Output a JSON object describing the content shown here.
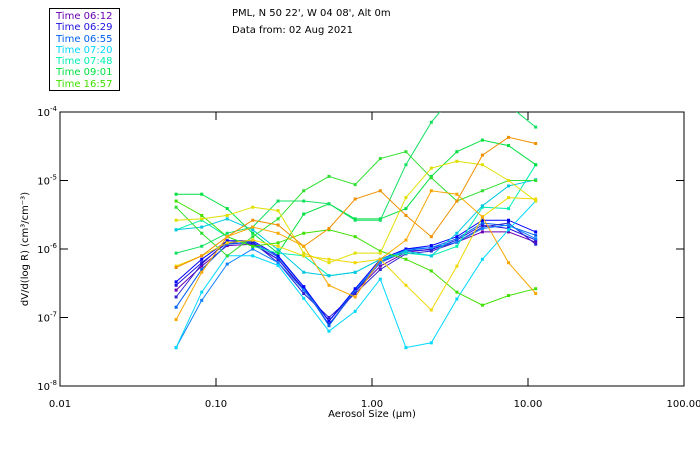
{
  "header": {
    "line1": "PML, N 50 22', W 04 08', Alt 0m",
    "line2": "Data from: 02 Aug 2021"
  },
  "legend": [
    {
      "label": "Time 06:12",
      "color": "#6a00b0"
    },
    {
      "label": "Time 06:29",
      "color": "#2010e0"
    },
    {
      "label": "Time 06:55",
      "color": "#0060f0"
    },
    {
      "label": "Time 07:20",
      "color": "#00d8ff"
    },
    {
      "label": "Time 07:48",
      "color": "#00f0b0"
    },
    {
      "label": "Time 09:01",
      "color": "#00e040"
    },
    {
      "label": "Time 16:57",
      "color": "#40e000"
    }
  ],
  "chart_data": {
    "type": "line",
    "xlabel": "Aerosol Size (µm)",
    "ylabel": "dV/d(log R) (cm³/cm⁻³)",
    "xscale": "log",
    "yscale": "log",
    "xlim": [
      0.01,
      100
    ],
    "ylim": [
      1e-08,
      0.0001
    ],
    "xticks": [
      "0.01",
      "0.10",
      "1.00",
      "10.00",
      "100.00"
    ],
    "yticks": [
      {
        "exp": "-4"
      },
      {
        "exp": "-5"
      },
      {
        "exp": "-6"
      },
      {
        "exp": "-7"
      },
      {
        "exp": "-8"
      }
    ],
    "x": [
      0.0555,
      0.081,
      0.118,
      0.172,
      0.25,
      0.365,
      0.53,
      0.78,
      1.13,
      1.65,
      2.4,
      3.5,
      5.1,
      7.5,
      11.2
    ],
    "series_value_encoding": "log10 of dV/d(log R)",
    "series": [
      {
        "color": "#6a00b0",
        "log10_values": [
          -6.6,
          -6.25,
          -5.95,
          -5.93,
          -6.15,
          -6.6,
          -7.05,
          -6.62,
          -6.25,
          -6.05,
          -6.0,
          -5.9,
          -5.75,
          -5.75,
          -5.9
        ]
      },
      {
        "color": "#2010e0",
        "log10_values": [
          -6.53,
          -6.2,
          -5.91,
          -5.92,
          -6.15,
          -6.58,
          -7.1,
          -6.62,
          -6.2,
          -6.03,
          -6.01,
          -5.87,
          -5.65,
          -5.7,
          -5.87
        ]
      },
      {
        "color": "#0060f0",
        "log10_values": [
          -6.85,
          -6.3,
          -5.93,
          -5.9,
          -6.12,
          -6.55,
          -7.12,
          -6.6,
          -6.18,
          -6.02,
          -5.98,
          -5.85,
          -5.62,
          -5.66,
          -5.8
        ]
      },
      {
        "color": "#3020d0",
        "log10_values": [
          -6.7,
          -6.22,
          -5.88,
          -5.9,
          -6.2,
          -6.65,
          -7.0,
          -6.65,
          -6.3,
          -6.07,
          -6.03,
          -5.9,
          -5.68,
          -5.62,
          -5.93
        ]
      },
      {
        "color": "#1080ff",
        "log10_values": [
          -7.44,
          -6.75,
          -6.22,
          -6.0,
          -6.2,
          -6.6,
          -7.05,
          -6.6,
          -6.2,
          -6.0,
          -5.98,
          -5.9,
          -5.7,
          -5.65,
          -5.85
        ]
      },
      {
        "color": "#0000ff",
        "log10_values": [
          -6.48,
          -6.15,
          -5.88,
          -5.88,
          -6.1,
          -6.55,
          -7.05,
          -6.58,
          -6.15,
          -6.0,
          -5.95,
          -5.82,
          -5.58,
          -5.58,
          -5.75
        ]
      },
      {
        "color": "#00d8ff",
        "log10_values": [
          -7.44,
          -6.63,
          -6.1,
          -6.1,
          -6.24,
          -6.72,
          -7.2,
          -6.91,
          -6.44,
          -7.44,
          -7.37,
          -6.73,
          -6.15,
          -5.72,
          -5.3
        ]
      },
      {
        "color": "#00f0b0",
        "log10_values": [
          -5.72,
          -5.58,
          -5.82,
          -5.96,
          -6.06,
          -6.1,
          -6.39,
          -6.34,
          -6.15,
          -6.06,
          -6.1,
          -5.96,
          -5.39,
          -5.41,
          -4.77
        ]
      },
      {
        "color": "#00c8e0",
        "log10_values": [
          -5.72,
          -5.68,
          -5.56,
          -5.72,
          -6.01,
          -6.34,
          -6.39,
          -6.34,
          -6.15,
          -6.03,
          -6.1,
          -5.77,
          -5.37,
          -5.08,
          -4.99
        ]
      },
      {
        "color": "#00e040",
        "log10_values": [
          -5.2,
          -5.2,
          -5.41,
          -5.77,
          -6.06,
          -5.49,
          -5.34,
          -5.56,
          -5.56,
          -5.41,
          -4.94,
          -4.58,
          -4.41,
          -4.49,
          -4.77
        ]
      },
      {
        "color": "#40e000",
        "log10_values": [
          -5.3,
          -5.51,
          -5.82,
          -5.96,
          -5.91,
          -5.77,
          -5.72,
          -5.82,
          -6.03,
          -6.15,
          -6.32,
          -6.63,
          -6.82,
          -6.68,
          -6.58
        ]
      },
      {
        "color": "#30e030",
        "log10_values": [
          -5.39,
          -5.77,
          -6.1,
          -5.82,
          -5.56,
          -5.15,
          -4.94,
          -5.06,
          -4.68,
          -4.58,
          -4.96,
          -5.3,
          -5.15,
          -5.0,
          -5.0
        ]
      },
      {
        "color": "#10e060",
        "log10_values": [
          -6.06,
          -5.96,
          -5.77,
          -5.68,
          -5.3,
          -5.3,
          -5.34,
          -5.58,
          -5.58,
          -4.77,
          -4.15,
          -3.7,
          -3.7,
          -3.9,
          -4.22
        ]
      },
      {
        "color": "#e0e000",
        "log10_values": [
          -5.58,
          -5.56,
          -5.51,
          -5.39,
          -5.44,
          -6.06,
          -6.2,
          -6.06,
          -6.06,
          -5.25,
          -4.82,
          -4.72,
          -4.77,
          -5.0,
          -5.3
        ]
      },
      {
        "color": "#f0d800",
        "log10_values": [
          -6.25,
          -6.1,
          -5.91,
          -5.87,
          -5.96,
          -6.1,
          -6.15,
          -6.2,
          -6.15,
          -6.53,
          -6.89,
          -6.25,
          -5.53,
          -5.25,
          -5.27
        ]
      },
      {
        "color": "#f09000",
        "log10_values": [
          -6.27,
          -6.1,
          -5.82,
          -5.58,
          -5.65,
          -5.96,
          -5.7,
          -5.27,
          -5.15,
          -5.51,
          -5.82,
          -5.3,
          -4.63,
          -4.37,
          -4.46
        ]
      },
      {
        "color": "#f8a800",
        "log10_values": [
          -7.03,
          -6.34,
          -5.82,
          -5.68,
          -5.77,
          -5.96,
          -6.53,
          -6.7,
          -6.15,
          -5.87,
          -5.15,
          -5.2,
          -5.53,
          -6.2,
          -6.65
        ]
      }
    ]
  }
}
